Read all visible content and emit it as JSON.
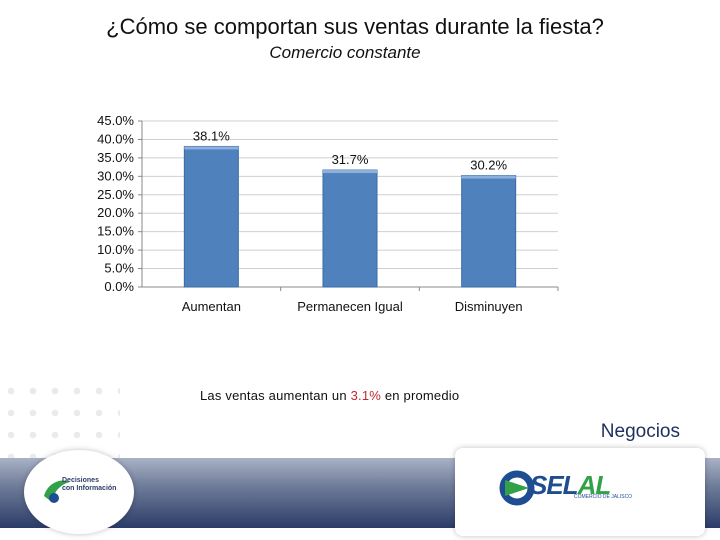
{
  "title": "¿Cómo se comportan sus ventas durante la fiesta?",
  "subtitle": "Comercio constante",
  "note": {
    "prefix": "Las ventas aumentan un ",
    "highlight": "3.1%",
    "suffix": " en promedio"
  },
  "section_label": "Negocios",
  "logos": {
    "left": [
      "Decisiones",
      "con Información"
    ],
    "right_main_a": "SEL",
    "right_main_b": "AL",
    "right_sub": "COMERCIO DE JALISCO"
  },
  "colors": {
    "bar": "#4f81bd",
    "highlight": "#c0282d",
    "band_dark": "#2b3c69"
  },
  "chart_data": {
    "type": "bar",
    "categories": [
      "Aumentan",
      "Permanecen Igual",
      "Disminuyen"
    ],
    "values": [
      38.1,
      31.7,
      30.2
    ],
    "data_labels": [
      "38.1%",
      "31.7%",
      "30.2%"
    ],
    "ylim": [
      0,
      45
    ],
    "yticks": [
      "0.0%",
      "5.0%",
      "10.0%",
      "15.0%",
      "20.0%",
      "25.0%",
      "30.0%",
      "35.0%",
      "40.0%",
      "45.0%"
    ],
    "grid": true,
    "legend": "none"
  }
}
